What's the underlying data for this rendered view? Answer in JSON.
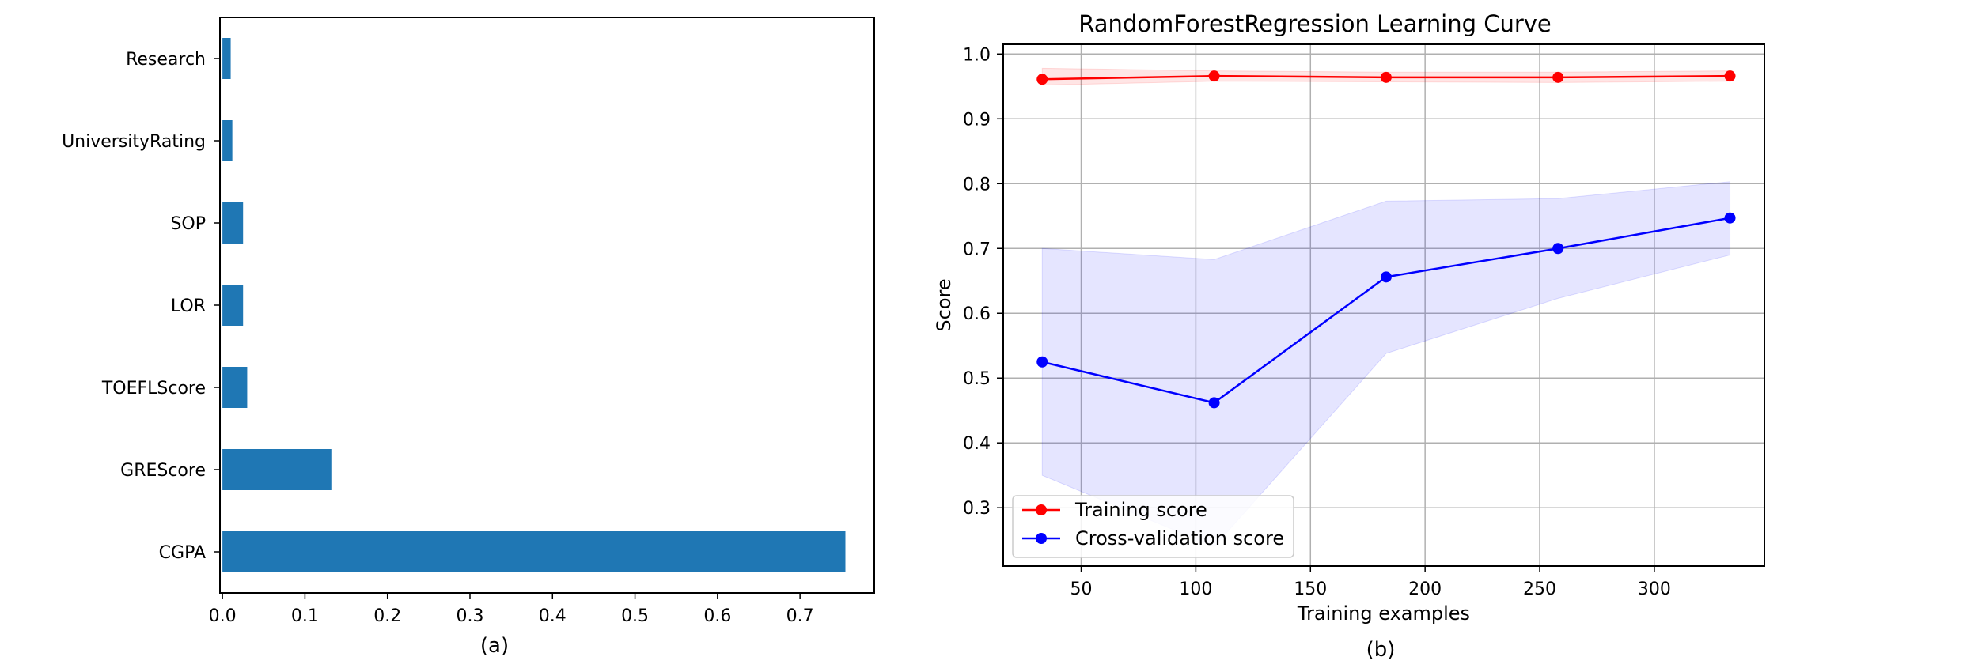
{
  "captions": [
    "(a)",
    "(b)"
  ],
  "chart_data": [
    {
      "type": "bar",
      "orientation": "horizontal",
      "categories": [
        "CGPA",
        "GREScore",
        "TOEFLScore",
        "LOR",
        "SOP",
        "UniversityRating",
        "Research"
      ],
      "values": [
        0.755,
        0.132,
        0.03,
        0.025,
        0.025,
        0.012,
        0.01
      ],
      "xlim": [
        -0.003,
        0.79
      ],
      "xticks": [
        "0.0",
        "0.1",
        "0.2",
        "0.3",
        "0.4",
        "0.5",
        "0.6",
        "0.7"
      ],
      "xtick_values": [
        0,
        0.1,
        0.2,
        0.3,
        0.4,
        0.5,
        0.6,
        0.7
      ],
      "color": "#1f77b4",
      "grid": false,
      "title": "",
      "xlabel": "",
      "ylabel": ""
    },
    {
      "type": "line",
      "title": "RandomForestRegression Learning Curve",
      "xlabel": "Training examples",
      "ylabel": "Score",
      "xlim": [
        16,
        348
      ],
      "ylim": [
        0.21,
        1.015
      ],
      "xticks": [
        "50",
        "100",
        "150",
        "200",
        "250",
        "300"
      ],
      "xtick_values": [
        50,
        100,
        150,
        200,
        250,
        300
      ],
      "yticks": [
        "0.3",
        "0.4",
        "0.5",
        "0.6",
        "0.7",
        "0.8",
        "0.9",
        "1.0"
      ],
      "ytick_values": [
        0.3,
        0.4,
        0.5,
        0.6,
        0.7,
        0.8,
        0.9,
        1.0
      ],
      "grid": true,
      "legend_position": "lower-left",
      "x": [
        33,
        108,
        183,
        258,
        333
      ],
      "series": [
        {
          "name": "Training score",
          "color": "#ff0000",
          "band_color": "#ff0000",
          "values": [
            0.961,
            0.966,
            0.964,
            0.964,
            0.966
          ],
          "band_low": [
            0.952,
            0.958,
            0.957,
            0.956,
            0.958
          ],
          "band_high": [
            0.978,
            0.974,
            0.972,
            0.972,
            0.974
          ]
        },
        {
          "name": "Cross-validation score",
          "color": "#0000ff",
          "band_color": "#0000ff",
          "values": [
            0.525,
            0.462,
            0.656,
            0.7,
            0.747
          ],
          "band_low": [
            0.35,
            0.24,
            0.538,
            0.623,
            0.69
          ],
          "band_high": [
            0.7,
            0.683,
            0.773,
            0.777,
            0.803
          ]
        }
      ]
    }
  ]
}
